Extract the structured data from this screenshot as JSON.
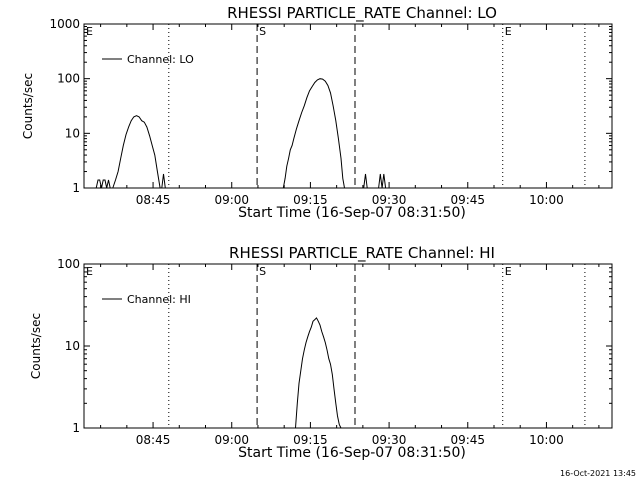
{
  "footer": {
    "timestamp": "16-Oct-2021 13:45"
  },
  "chart_data": [
    {
      "type": "line",
      "title": "RHESSI PARTICLE_RATE Channel: LO",
      "xlabel": "Start Time (16-Sep-07 08:31:50)",
      "ylabel": "Counts/sec",
      "yscale": "log",
      "ylim": [
        1,
        1000
      ],
      "xlim": [
        "08:31:50",
        "10:12:30"
      ],
      "x_ticks": [
        "08:45",
        "09:00",
        "09:15",
        "09:30",
        "09:45",
        "10:00"
      ],
      "y_ticks": [
        "1",
        "10",
        "100",
        "1000"
      ],
      "legend": {
        "entries": [
          "Channel: LO"
        ],
        "position": "top-left"
      },
      "markers": [
        {
          "label": "S",
          "time": "09:04:50",
          "style": "dashed"
        },
        {
          "label": "",
          "time": "09:23:30",
          "style": "dashed"
        },
        {
          "label": "",
          "time": "08:48:00",
          "style": "dotted"
        },
        {
          "label": "E",
          "time": "09:51:40",
          "style": "dotted"
        },
        {
          "label": "",
          "time": "10:07:20",
          "style": "dotted"
        },
        {
          "label": "E",
          "time": "08:31:50",
          "style": "none"
        }
      ],
      "series": [
        {
          "name": "Channel: LO",
          "segments": [
            {
              "x": [
                "08:34:10",
                "08:34:30",
                "08:34:50",
                "08:35:10",
                "08:35:30",
                "08:35:50",
                "08:36:10",
                "08:36:30",
                "08:36:50"
              ],
              "y": [
                1,
                1.4,
                1.4,
                1,
                1.4,
                1.4,
                1,
                1.4,
                1
              ]
            },
            {
              "x": [
                "08:37:20",
                "08:37:50",
                "08:38:20",
                "08:38:50",
                "08:39:20",
                "08:39:50",
                "08:40:20",
                "08:40:50",
                "08:41:20",
                "08:41:50",
                "08:42:20",
                "08:42:50",
                "08:43:20",
                "08:43:50",
                "08:44:20",
                "08:44:50",
                "08:45:20",
                "08:45:50",
                "08:46:20"
              ],
              "y": [
                1,
                1.4,
                2,
                3.5,
                6,
                9.5,
                13,
                17,
                20,
                21,
                20,
                17,
                16,
                13,
                9,
                6,
                4,
                2,
                1
              ]
            },
            {
              "x": [
                "08:46:40",
                "08:47:00",
                "08:47:20"
              ],
              "y": [
                1,
                1.8,
                1
              ]
            },
            {
              "x": [
                "09:09:50",
                "09:10:10",
                "09:10:30",
                "09:10:50",
                "09:11:10",
                "09:11:30",
                "09:11:50",
                "09:12:20",
                "09:12:50",
                "09:13:20",
                "09:13:50",
                "09:14:20",
                "09:14:50",
                "09:15:20",
                "09:15:50",
                "09:16:20",
                "09:16:50",
                "09:17:20",
                "09:17:50",
                "09:18:20",
                "09:18:50",
                "09:19:20",
                "09:19:50",
                "09:20:20",
                "09:20:50",
                "09:21:10",
                "09:21:30"
              ],
              "y": [
                1,
                1.5,
                2.5,
                3.5,
                5,
                6,
                8,
                12,
                17,
                24,
                32,
                45,
                60,
                72,
                85,
                95,
                100,
                98,
                90,
                75,
                55,
                32,
                17,
                8,
                3.5,
                1.5,
                1
              ]
            },
            {
              "x": [
                "09:25:10",
                "09:25:30",
                "09:25:50"
              ],
              "y": [
                1,
                1.8,
                1
              ]
            },
            {
              "x": [
                "09:28:00",
                "09:28:20",
                "09:28:40",
                "09:29:00",
                "09:29:20"
              ],
              "y": [
                1,
                1.8,
                1,
                1.8,
                1
              ]
            }
          ]
        }
      ]
    },
    {
      "type": "line",
      "title": "RHESSI PARTICLE_RATE Channel: HI",
      "xlabel": "Start Time (16-Sep-07 08:31:50)",
      "ylabel": "Counts/sec",
      "yscale": "log",
      "ylim": [
        1,
        100
      ],
      "xlim": [
        "08:31:50",
        "10:12:30"
      ],
      "x_ticks": [
        "08:45",
        "09:00",
        "09:15",
        "09:30",
        "09:45",
        "10:00"
      ],
      "y_ticks": [
        "1",
        "10",
        "100"
      ],
      "legend": {
        "entries": [
          "Channel: HI"
        ],
        "position": "top-left"
      },
      "markers": [
        {
          "label": "S",
          "time": "09:04:50",
          "style": "dashed"
        },
        {
          "label": "",
          "time": "09:23:30",
          "style": "dashed"
        },
        {
          "label": "",
          "time": "08:48:00",
          "style": "dotted"
        },
        {
          "label": "E",
          "time": "09:51:40",
          "style": "dotted"
        },
        {
          "label": "",
          "time": "10:07:20",
          "style": "dotted"
        },
        {
          "label": "E",
          "time": "08:31:50",
          "style": "none"
        }
      ],
      "series": [
        {
          "name": "Channel: HI",
          "segments": [
            {
              "x": [
                "09:12:10",
                "09:12:30",
                "09:12:50",
                "09:13:10",
                "09:13:30",
                "09:13:50",
                "09:14:10",
                "09:14:30",
                "09:14:50",
                "09:15:10",
                "09:15:30",
                "09:15:50",
                "09:16:10",
                "09:16:30",
                "09:16:50",
                "09:17:10",
                "09:17:30",
                "09:17:50",
                "09:18:10",
                "09:18:30",
                "09:18:50",
                "09:19:10",
                "09:19:30",
                "09:19:50",
                "09:20:10",
                "09:20:30",
                "09:20:50"
              ],
              "y": [
                1,
                2,
                3.5,
                5,
                7,
                9,
                11,
                13,
                15,
                17,
                20,
                21,
                22,
                20,
                18,
                15,
                13,
                11,
                9,
                7,
                6,
                4.5,
                3,
                2,
                1.4,
                1.1,
                1
              ]
            }
          ]
        }
      ]
    }
  ]
}
